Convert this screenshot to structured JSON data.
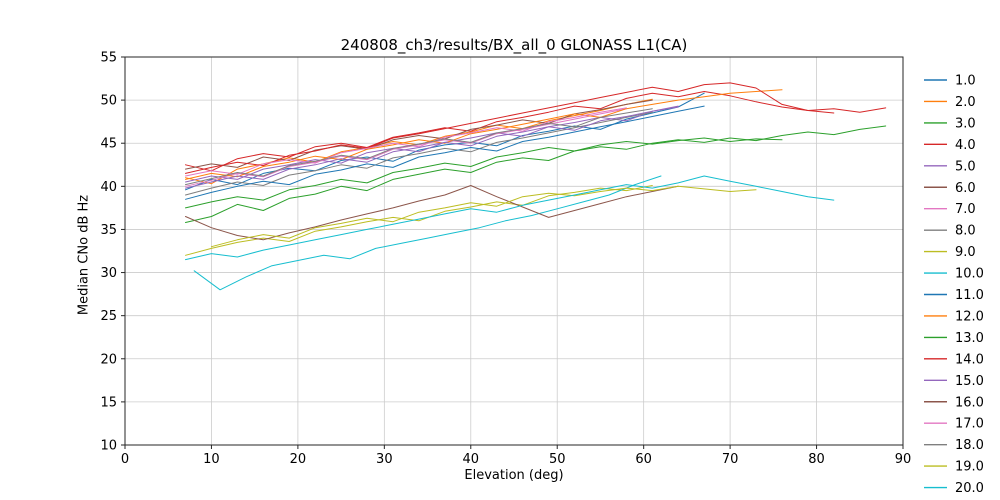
{
  "chart_data": {
    "type": "line",
    "title": "240808_ch3/results/BX_all_0 GLONASS L1(CA)",
    "xlabel": "Elevation (deg)",
    "ylabel": "Median CNo dB Hz",
    "xlim": [
      0,
      90
    ],
    "ylim": [
      10,
      55
    ],
    "xticks": [
      0,
      10,
      20,
      30,
      40,
      50,
      60,
      70,
      80,
      90
    ],
    "yticks": [
      10,
      15,
      20,
      25,
      30,
      35,
      40,
      45,
      50,
      55
    ],
    "grid": true,
    "grid_color": "#cccccc",
    "spine_color": "#262626",
    "legend_position": "right-outside",
    "series": [
      {
        "name": "1.0",
        "color": "#1f77b4",
        "x_start": 7,
        "x_step": 3,
        "y": [
          39.6,
          40.8,
          40.2,
          41.5,
          42.1,
          41.8,
          43.0,
          43.4,
          42.9,
          44.2,
          44.8,
          45.1,
          44.7,
          45.9,
          46.4,
          47.0,
          46.6,
          47.8,
          48.5,
          49.2,
          50.8
        ]
      },
      {
        "name": "2.0",
        "color": "#ff7f0e",
        "x_start": 7,
        "x_step": 3,
        "y": [
          41.0,
          40.3,
          42.0,
          42.6,
          43.3,
          42.8,
          44.0,
          44.5,
          45.2,
          44.8,
          45.8,
          46.3,
          47.1,
          46.7,
          47.6,
          48.2,
          48.8,
          49.5,
          50.1
        ]
      },
      {
        "name": "3.0",
        "color": "#2ca02c",
        "x_start": 7,
        "x_step": 3,
        "y": [
          35.8,
          36.5,
          37.9,
          37.2,
          38.6,
          39.1,
          40.0,
          39.5,
          40.8,
          41.4,
          42.0,
          41.6,
          42.8,
          43.3,
          43.0,
          44.1,
          44.6,
          44.3,
          45.0,
          45.4,
          45.1,
          45.6,
          45.3,
          45.9,
          46.3,
          46.0,
          46.6,
          47.0
        ]
      },
      {
        "name": "4.0",
        "color": "#d62728",
        "x_start": 7,
        "x_step": 3,
        "y": [
          42.5,
          41.8,
          43.2,
          43.8,
          43.4,
          44.6,
          45.0,
          44.5,
          45.7,
          46.2,
          46.8,
          46.4,
          47.5,
          48.0,
          48.6,
          49.3,
          49.0,
          50.2,
          50.8,
          50.4,
          51.0,
          50.5,
          49.8,
          49.2,
          48.8,
          49.0,
          48.6,
          49.1
        ]
      },
      {
        "name": "5.0",
        "color": "#9467bd",
        "x_start": 7,
        "x_step": 3,
        "y": [
          40.5,
          41.2,
          40.8,
          42.0,
          42.5,
          43.1,
          42.7,
          43.9,
          44.4,
          44.0,
          45.1,
          45.6,
          46.2,
          45.8,
          46.9,
          47.4,
          48.0,
          47.6,
          48.7,
          49.3
        ]
      },
      {
        "name": "6.0",
        "color": "#8c564b",
        "x_start": 7,
        "x_step": 3,
        "y": [
          42.0,
          42.6,
          42.2,
          43.4,
          43.0,
          44.2,
          44.7,
          44.3,
          45.4,
          45.9,
          45.5,
          46.6,
          47.1,
          47.7,
          47.3,
          48.4,
          48.9,
          49.5,
          50.0
        ]
      },
      {
        "name": "7.0",
        "color": "#e377c2",
        "x_start": 7,
        "x_step": 3,
        "y": [
          40.0,
          40.7,
          41.5,
          41.1,
          42.3,
          42.8,
          43.5,
          43.1,
          44.3,
          44.8,
          45.4,
          45.0,
          46.1,
          46.6,
          47.2,
          47.8,
          48.4,
          49.0
        ]
      },
      {
        "name": "8.0",
        "color": "#7f7f7f",
        "x_start": 7,
        "x_step": 3,
        "y": [
          39.0,
          39.8,
          40.5,
          40.1,
          41.3,
          41.8,
          42.5,
          42.1,
          43.3,
          43.8,
          44.4,
          44.0,
          45.1,
          45.6,
          46.2,
          46.8,
          47.4,
          48.0,
          48.6
        ]
      },
      {
        "name": "9.0",
        "color": "#bcbd22",
        "x_start": 7,
        "x_step": 3,
        "y": [
          32.0,
          32.8,
          33.5,
          34.0,
          33.6,
          34.8,
          35.3,
          35.9,
          36.4,
          36.0,
          37.1,
          37.6,
          38.2,
          37.8,
          38.9,
          39.3,
          39.8,
          39.5,
          40.1
        ]
      },
      {
        "name": "10.0",
        "color": "#17becf",
        "x_start": 8,
        "x_step": 3,
        "y": [
          30.2,
          28.0,
          29.5,
          30.8,
          31.4,
          32.0,
          31.6,
          32.8,
          33.4,
          34.0,
          34.6,
          35.2,
          36.0,
          36.6,
          37.4,
          38.2,
          39.0,
          40.2,
          41.2
        ]
      },
      {
        "name": "11.0",
        "color": "#1f77b4",
        "x_start": 7,
        "x_step": 3,
        "y": [
          38.5,
          39.3,
          40.0,
          40.6,
          40.2,
          41.4,
          41.9,
          42.6,
          42.2,
          43.4,
          43.9,
          44.5,
          44.1,
          45.2,
          45.7,
          46.3,
          46.9,
          47.5,
          48.1,
          48.7,
          49.3
        ]
      },
      {
        "name": "12.0",
        "color": "#ff7f0e",
        "x_start": 7,
        "x_step": 3,
        "y": [
          40.8,
          41.5,
          41.1,
          42.3,
          42.8,
          43.5,
          43.1,
          44.3,
          44.8,
          45.4,
          45.0,
          46.1,
          46.6,
          47.2,
          47.8,
          48.4,
          48.0,
          49.0,
          49.5,
          50.0,
          50.4,
          50.8,
          51.0,
          51.2
        ]
      },
      {
        "name": "13.0",
        "color": "#2ca02c",
        "x_start": 7,
        "x_step": 3,
        "y": [
          37.5,
          38.2,
          38.8,
          38.4,
          39.6,
          40.1,
          40.8,
          40.4,
          41.6,
          42.1,
          42.7,
          42.3,
          43.4,
          43.9,
          44.5,
          44.1,
          44.8,
          45.2,
          44.9,
          45.3,
          45.6,
          45.2,
          45.5,
          45.4
        ]
      },
      {
        "name": "14.0",
        "color": "#d62728",
        "x_start": 7,
        "x_step": 3,
        "y": [
          41.5,
          42.2,
          42.8,
          42.4,
          43.6,
          44.1,
          44.8,
          44.4,
          45.6,
          46.1,
          46.7,
          47.3,
          47.9,
          48.5,
          49.1,
          49.7,
          50.3,
          50.9,
          51.5,
          51.0,
          51.8,
          52.0,
          51.4,
          49.5,
          48.8,
          48.5
        ]
      },
      {
        "name": "15.0",
        "color": "#9467bd",
        "x_start": 7,
        "x_step": 3,
        "y": [
          39.8,
          40.5,
          41.2,
          40.8,
          42.0,
          42.5,
          43.2,
          42.8,
          44.0,
          44.5,
          45.1,
          44.7,
          45.8,
          46.3,
          46.9,
          46.5,
          47.6,
          48.1,
          48.7,
          49.2
        ]
      },
      {
        "name": "16.0",
        "color": "#8c564b",
        "x_start": 7,
        "x_step": 3,
        "y": [
          36.5,
          35.2,
          34.3,
          33.8,
          34.6,
          35.3,
          36.1,
          36.8,
          37.5,
          38.3,
          39.0,
          40.1,
          38.8,
          37.6,
          36.4,
          37.2,
          38.0,
          38.8,
          39.4,
          40.0
        ]
      },
      {
        "name": "17.0",
        "color": "#e377c2",
        "x_start": 7,
        "x_step": 3,
        "y": [
          41.2,
          41.8,
          41.4,
          42.6,
          43.1,
          42.7,
          43.9,
          44.4,
          45.0,
          44.6,
          45.7,
          46.2,
          46.8,
          46.4,
          47.5,
          48.0,
          48.6,
          49.1
        ]
      },
      {
        "name": "18.0",
        "color": "#7f7f7f",
        "x_start": 7,
        "x_step": 3,
        "y": [
          40.2,
          40.9,
          41.6,
          41.2,
          42.4,
          42.9,
          43.6,
          43.2,
          44.4,
          44.9,
          45.5,
          45.1,
          46.2,
          46.7,
          47.3,
          46.9,
          48.0,
          48.5,
          49.0
        ]
      },
      {
        "name": "19.0",
        "color": "#bcbd22",
        "x_start": 10,
        "x_step": 3,
        "y": [
          33.0,
          33.8,
          34.4,
          34.0,
          35.2,
          35.7,
          36.3,
          35.9,
          37.0,
          37.5,
          38.1,
          37.7,
          38.8,
          39.2,
          38.9,
          39.4,
          39.8,
          39.5,
          40.0,
          39.7,
          39.4,
          39.6
        ]
      },
      {
        "name": "20.0",
        "color": "#17becf",
        "x_start": 7,
        "x_step": 3,
        "y": [
          31.5,
          32.2,
          31.8,
          32.6,
          33.2,
          33.8,
          34.4,
          35.0,
          35.6,
          36.2,
          36.8,
          37.4,
          37.0,
          37.8,
          38.4,
          39.0,
          39.6,
          40.2,
          39.8,
          40.4,
          41.2,
          40.6,
          40.0,
          39.4,
          38.8,
          38.4
        ]
      }
    ]
  }
}
